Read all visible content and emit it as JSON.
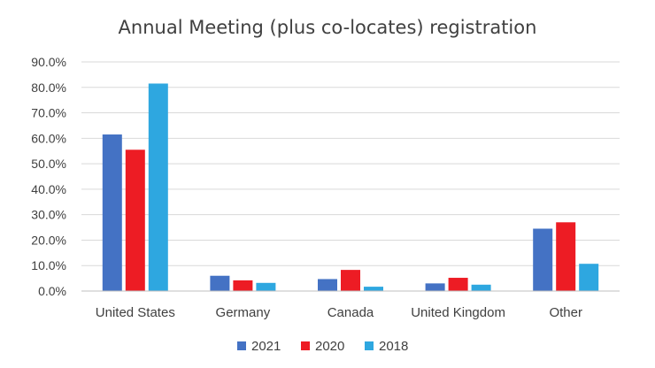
{
  "chart_data": {
    "type": "bar",
    "title": "Annual Meeting (plus co-locates) registration",
    "xlabel": "",
    "ylabel": "",
    "categories": [
      "United States",
      "Germany",
      "Canada",
      "United Kingdom",
      "Other"
    ],
    "series": [
      {
        "name": "2021",
        "color": "#4472C4",
        "values": [
          61.5,
          6.0,
          4.7,
          3.0,
          24.5
        ]
      },
      {
        "name": "2020",
        "color": "#ED1C24",
        "values": [
          55.5,
          4.2,
          8.3,
          5.2,
          27.0
        ]
      },
      {
        "name": "2018",
        "color": "#2EA7E0",
        "values": [
          81.5,
          3.2,
          1.7,
          2.5,
          10.7
        ]
      }
    ],
    "ylim": [
      0,
      90
    ],
    "yticks": [
      "0.0%",
      "10.0%",
      "20.0%",
      "30.0%",
      "40.0%",
      "50.0%",
      "60.0%",
      "70.0%",
      "80.0%",
      "90.0%"
    ],
    "grid": true,
    "legend_position": "bottom"
  }
}
